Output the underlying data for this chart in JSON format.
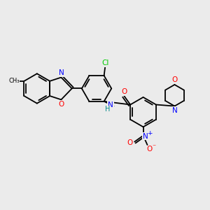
{
  "bg_color": "#ebebeb",
  "bond_color": "#000000",
  "atom_colors": {
    "N": "#0000ff",
    "O": "#ff0000",
    "Cl": "#00cc00",
    "C_label": "#000000",
    "H": "#008888"
  }
}
